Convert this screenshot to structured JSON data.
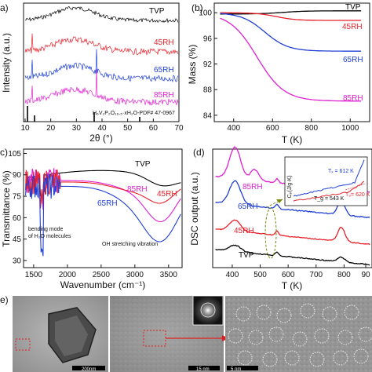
{
  "panels": {
    "a": {
      "label": "a)",
      "xlabel": "2θ (°)",
      "ylabel": "Intensity (a.u.)",
      "xticks": [
        "10",
        "20",
        "30",
        "40",
        "50",
        "60",
        "70"
      ],
      "series": [
        {
          "name": "TVP",
          "color": "#000000"
        },
        {
          "name": "45RH",
          "color": "#e8202a"
        },
        {
          "name": "65RH",
          "color": "#1f3fd6"
        },
        {
          "name": "85RH",
          "color": "#e020d0"
        }
      ],
      "reference": "H₆V₂P₂O₁₆.₅·xH₂O-PDF# 47-0967"
    },
    "b": {
      "label": "(b)",
      "xlabel": "T (K)",
      "ylabel": "Mass (%)",
      "xticks": [
        "400",
        "600",
        "800",
        "1000"
      ],
      "yticks": [
        "84",
        "88",
        "92",
        "96",
        "100"
      ],
      "series": [
        {
          "name": "TVP",
          "color": "#000000"
        },
        {
          "name": "45RH",
          "color": "#e8202a"
        },
        {
          "name": "65RH",
          "color": "#1f3fd6"
        },
        {
          "name": "85RH",
          "color": "#e020d0"
        }
      ]
    },
    "c": {
      "label": "c)",
      "xlabel": "Wavenumber (cm⁻¹)",
      "ylabel": "Transmittance (%)",
      "xticks": [
        "1500",
        "2000",
        "2500",
        "3000",
        "3500"
      ],
      "yticks": [
        "30",
        "45",
        "60",
        "75",
        "90",
        "105"
      ],
      "annotation1_line1": "bending mode",
      "annotation1_line2": "of H₂O molecules",
      "annotation2": "OH stretching vibration",
      "series": [
        {
          "name": "TVP",
          "color": "#000000"
        },
        {
          "name": "85RH",
          "color": "#e020d0"
        },
        {
          "name": "45RH",
          "color": "#e8202a"
        },
        {
          "name": "65RH",
          "color": "#1f3fd6"
        }
      ]
    },
    "d": {
      "label": "(d)",
      "xlabel": "T (K)",
      "ylabel": "DSC output (a.u.)",
      "xticks": [
        "400",
        "500",
        "600",
        "700",
        "800",
        "90"
      ],
      "series": [
        {
          "name": "85RH",
          "color": "#e020d0"
        },
        {
          "name": "65RH",
          "color": "#1f3fd6"
        },
        {
          "name": "45RH",
          "color": "#e8202a"
        },
        {
          "name": "TVP",
          "color": "#000000"
        }
      ],
      "inset": {
        "ylabel": "Cₚ(J/g·K)",
        "tx_label": "Tₓ = 612 K",
        "tg_label": "T_g = 543 K",
        "tg2_label": "T₉= 620 K"
      }
    },
    "e": {
      "label": "e)",
      "scale1": "200nm",
      "scale2": "15 nm",
      "scale3": "5 nm"
    }
  }
}
